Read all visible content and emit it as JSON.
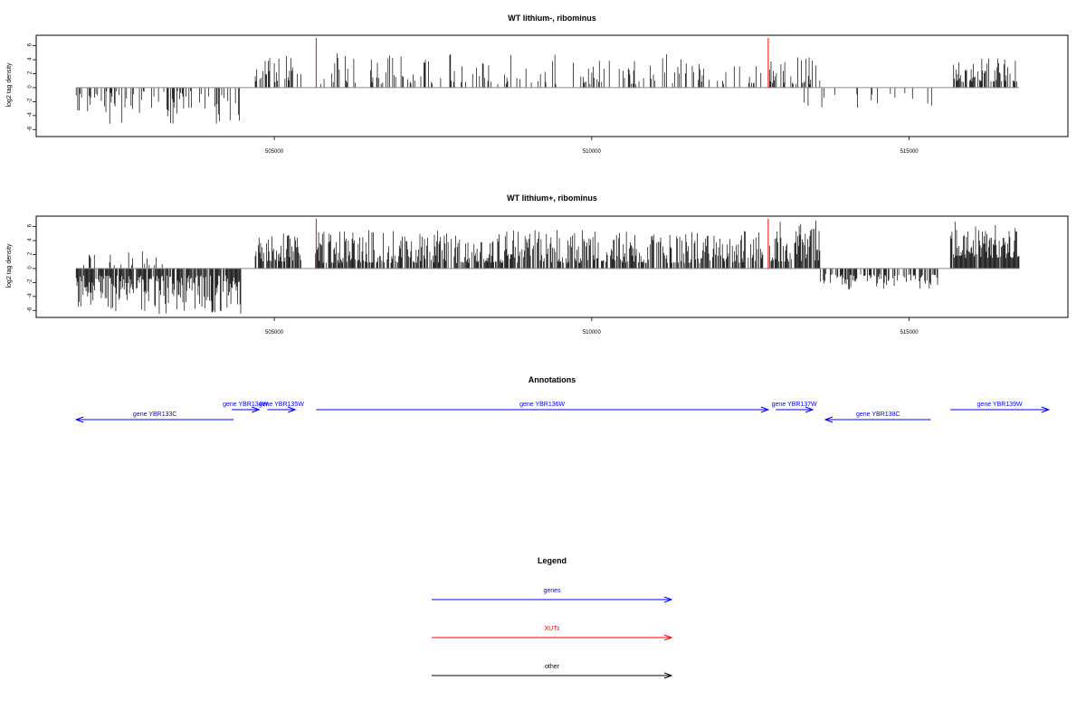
{
  "colors": {
    "axis": "#000000",
    "bars": "#000000",
    "xut": "#ff0000",
    "gene": "#0000ff",
    "other": "#000000",
    "baseline": "#888888"
  },
  "chart_data": [
    {
      "type": "bar",
      "title": "WT lithium-, ribominus",
      "ylabel": "log2 tag density",
      "xlim": [
        501250,
        517500
      ],
      "ylim": [
        -7,
        7.5
      ],
      "yticks": [
        -6,
        -4,
        -2,
        0,
        2,
        4,
        6
      ],
      "yticklabels": [
        "-6",
        "-4",
        "-2",
        "0",
        "2",
        "4",
        "6"
      ],
      "xticks": [
        505000,
        510000,
        515000
      ],
      "xticklabels": [
        "505000",
        "510000",
        "515000"
      ],
      "grid": false,
      "baseline_range": [
        501880,
        516730
      ],
      "xut_markers": [
        505660,
        512780
      ],
      "series": [
        {
          "range": [
            501880,
            504480
          ],
          "sign": -1,
          "density": 0.34,
          "min": 0.5,
          "max": 5.2,
          "seed": 11
        },
        {
          "range": [
            504700,
            505430
          ],
          "sign": 1,
          "density": 0.4,
          "min": 0.8,
          "max": 5.0,
          "seed": 12
        },
        {
          "range": [
            505700,
            510000
          ],
          "sign": 1,
          "density": 0.22,
          "min": 0.5,
          "max": 5.0,
          "seed": 13
        },
        {
          "range": [
            510000,
            512700
          ],
          "sign": 1,
          "density": 0.28,
          "min": 0.5,
          "max": 4.8,
          "seed": 14
        },
        {
          "range": [
            512800,
            513600
          ],
          "sign": 1,
          "density": 0.45,
          "min": 0.5,
          "max": 4.8,
          "seed": 15
        },
        {
          "range": [
            513300,
            515450
          ],
          "sign": -1,
          "density": 0.1,
          "min": 0.8,
          "max": 4.0,
          "seed": 16
        },
        {
          "range": [
            515700,
            516730
          ],
          "sign": 1,
          "density": 0.6,
          "min": 0.8,
          "max": 4.2,
          "seed": 17
        }
      ]
    },
    {
      "type": "bar",
      "title": "WT lithium+, ribominus",
      "ylabel": "log2 tag density",
      "xlim": [
        501250,
        517500
      ],
      "ylim": [
        -7,
        7.5
      ],
      "yticks": [
        -6,
        -4,
        -2,
        0,
        2,
        4,
        6
      ],
      "yticklabels": [
        "-6",
        "-4",
        "-2",
        "0",
        "2",
        "4",
        "6"
      ],
      "xticks": [
        505000,
        510000,
        515000
      ],
      "xticklabels": [
        "505000",
        "510000",
        "515000"
      ],
      "grid": false,
      "baseline_range": [
        501880,
        516730
      ],
      "xut_markers": [
        505660,
        512780
      ],
      "series": [
        {
          "range": [
            501880,
            504480
          ],
          "sign": -1,
          "density": 0.85,
          "min": 1.0,
          "max": 6.5,
          "seed": 21
        },
        {
          "range": [
            501950,
            503300
          ],
          "sign": 1,
          "density": 0.15,
          "min": 0.5,
          "max": 2.5,
          "seed": 22
        },
        {
          "range": [
            504700,
            505430
          ],
          "sign": 1,
          "density": 0.7,
          "min": 1.0,
          "max": 5.0,
          "seed": 23
        },
        {
          "range": [
            505650,
            512700
          ],
          "sign": 1,
          "density": 0.75,
          "min": 0.8,
          "max": 5.5,
          "seed": 24
        },
        {
          "range": [
            512800,
            513600
          ],
          "sign": 1,
          "density": 0.85,
          "min": 1.0,
          "max": 7.0,
          "seed": 25
        },
        {
          "range": [
            513600,
            515450
          ],
          "sign": -1,
          "density": 0.55,
          "min": 0.8,
          "max": 3.0,
          "seed": 26
        },
        {
          "range": [
            515650,
            516730
          ],
          "sign": 1,
          "density": 0.95,
          "min": 1.5,
          "max": 6.8,
          "seed": 27
        }
      ]
    }
  ],
  "annotations": {
    "title": "Annotations",
    "genes": [
      {
        "label": "gene YBR133C",
        "start": 501880,
        "end": 504360,
        "strand": "-"
      },
      {
        "label": "gene YBR134W",
        "start": 504330,
        "end": 504760,
        "strand": "+"
      },
      {
        "label": "gene YBR135W",
        "start": 504890,
        "end": 505330,
        "strand": "+"
      },
      {
        "label": "gene YBR136W",
        "start": 505660,
        "end": 512780,
        "strand": "+"
      },
      {
        "label": "gene YBR137W",
        "start": 512900,
        "end": 513480,
        "strand": "+"
      },
      {
        "label": "gene YBR138C",
        "start": 513680,
        "end": 515340,
        "strand": "-"
      },
      {
        "label": "gene YBR139W",
        "start": 515650,
        "end": 517200,
        "strand": "+"
      }
    ]
  },
  "legend": {
    "title": "Legend",
    "items": [
      {
        "label": "genes",
        "color": "#0000ff"
      },
      {
        "label": "XUTs",
        "color": "#ff0000"
      },
      {
        "label": "other",
        "color": "#000000"
      }
    ]
  }
}
